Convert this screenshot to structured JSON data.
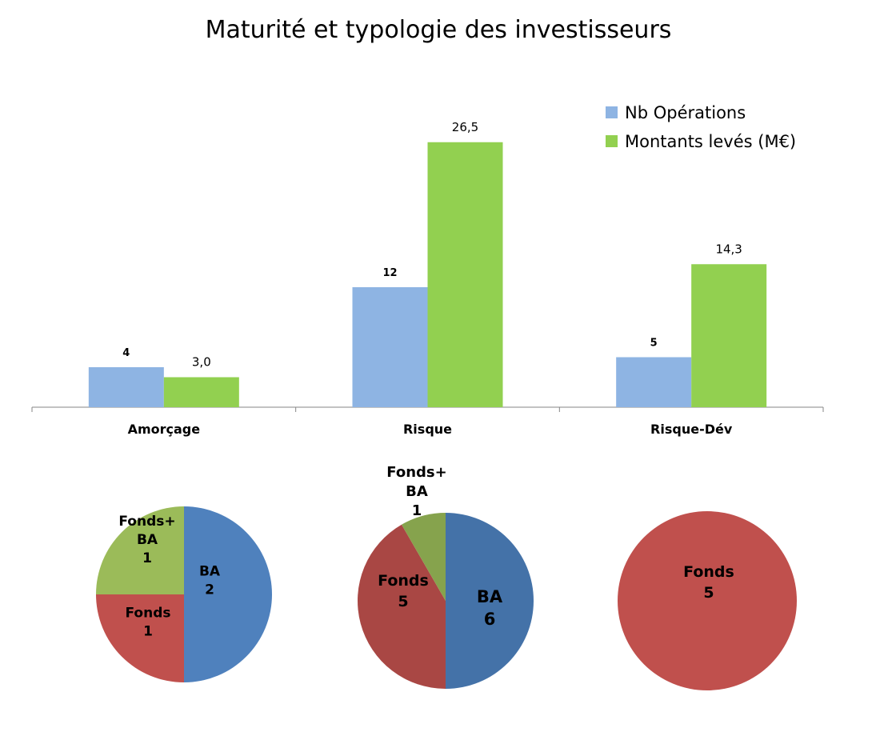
{
  "chart_data": [
    {
      "type": "bar",
      "title": "Maturité et typologie des investisseurs",
      "xlabel": "",
      "ylabel": "",
      "categories": [
        "Amorçage",
        "Risque",
        "Risque-Dév"
      ],
      "series": [
        {
          "name": "Nb Opérations",
          "values": [
            4,
            12,
            5
          ],
          "labels": [
            "4",
            "12",
            "5"
          ],
          "color": "#8EB4E3"
        },
        {
          "name": "Montants levés (M€)",
          "values": [
            3.0,
            26.5,
            14.3
          ],
          "labels": [
            "3,0",
            "26,5",
            "14,3"
          ],
          "color": "#92D050"
        }
      ],
      "ylim": [
        0,
        30
      ],
      "grid": false,
      "legend": "top-right"
    },
    {
      "type": "pie",
      "category": "Amorçage",
      "slices": [
        {
          "label": "BA",
          "value": 2,
          "value_label": "2",
          "color": "#4F81BD"
        },
        {
          "label": "Fonds",
          "value": 1,
          "value_label": "1",
          "color": "#C0504D"
        },
        {
          "label": "Fonds+ BA",
          "value": 1,
          "value_label": "1",
          "color": "#9BBB59"
        }
      ]
    },
    {
      "type": "pie",
      "category": "Risque",
      "slices": [
        {
          "label": "BA",
          "value": 6,
          "value_label": "6",
          "color": "#4472A8"
        },
        {
          "label": "Fonds",
          "value": 5,
          "value_label": "5",
          "color": "#A94744"
        },
        {
          "label": "Fonds+ BA",
          "value": 1,
          "value_label": "1",
          "color": "#86A34D"
        }
      ]
    },
    {
      "type": "pie",
      "category": "Risque-Dév",
      "slices": [
        {
          "label": "Fonds",
          "value": 5,
          "value_label": "5",
          "color": "#C0504D"
        }
      ]
    }
  ]
}
